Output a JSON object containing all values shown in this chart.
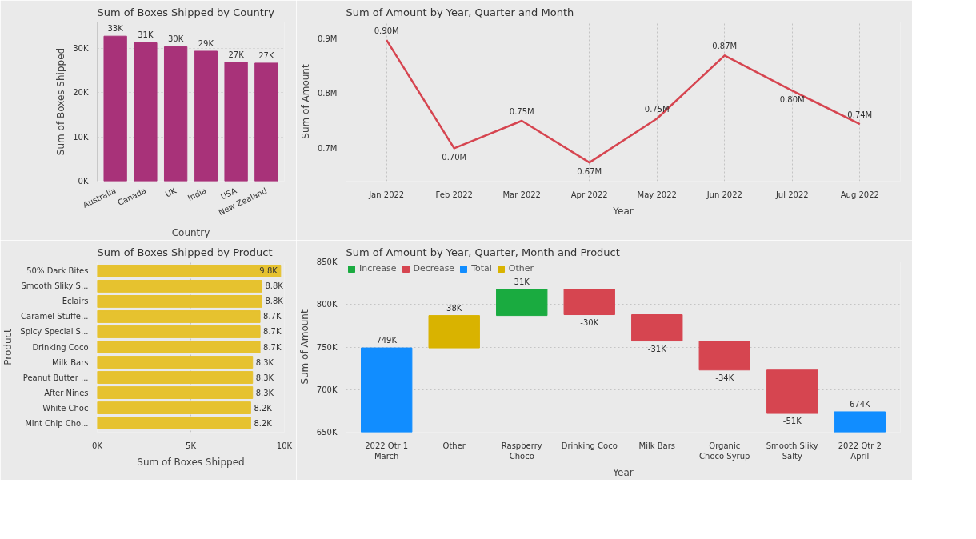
{
  "chart_data": [
    {
      "type": "bar",
      "title": "Sum of Boxes Shipped by Country",
      "xlabel": "Country",
      "ylabel": "Sum of Boxes Shipped",
      "categories": [
        "Australia",
        "Canada",
        "UK",
        "India",
        "USA",
        "New Zealand"
      ],
      "values": [
        32800,
        31300,
        30400,
        29400,
        26900,
        26700
      ],
      "color": "#a83279",
      "value_labels": [
        "33K",
        "31K",
        "30K",
        "29K",
        "27K",
        "27K"
      ],
      "ylim": [
        0,
        36000
      ],
      "yticks": [
        {
          "value": 0,
          "label": "0K"
        },
        {
          "value": 10000,
          "label": "10K"
        },
        {
          "value": 20000,
          "label": "20K"
        },
        {
          "value": 30000,
          "label": "30K"
        }
      ],
      "grid": "y"
    },
    {
      "type": "line",
      "title": "Sum of Amount by Year, Quarter and Month",
      "xlabel": "Year",
      "ylabel": "Sum of Amount",
      "categories": [
        "Jan 2022",
        "Feb 2022",
        "Mar 2022",
        "Apr 2022",
        "May 2022",
        "Jun 2022",
        "Jul 2022",
        "Aug 2022"
      ],
      "values": [
        0.897,
        0.7,
        0.75,
        0.674,
        0.754,
        0.869,
        0.805,
        0.744
      ],
      "color": "#d64550",
      "value_labels": [
        "0.90M",
        "0.70M",
        "0.75M",
        "0.67M",
        "0.75M",
        "0.87M",
        "0.80M",
        "0.74M"
      ],
      "ylim": [
        0.64,
        0.93
      ],
      "yticks": [
        {
          "value": 0.7,
          "label": "0.7M"
        },
        {
          "value": 0.8,
          "label": "0.8M"
        },
        {
          "value": 0.9,
          "label": "0.9M"
        }
      ],
      "grid": "x"
    },
    {
      "type": "bar",
      "orientation": "horizontal",
      "title": "Sum of Boxes Shipped by Product",
      "xlabel": "Sum of Boxes Shipped",
      "ylabel": "Product",
      "categories": [
        "50% Dark Bites",
        "Smooth Sliky S...",
        "Eclairs",
        "Caramel Stuffe...",
        "Spicy Special S...",
        "Drinking Coco",
        "Milk Bars",
        "Peanut Butter ...",
        "After Nines",
        "White Choc",
        "Mint Chip Cho..."
      ],
      "values": [
        9800,
        8800,
        8800,
        8700,
        8700,
        8700,
        8300,
        8300,
        8300,
        8200,
        8200
      ],
      "color": "#e6c22f",
      "value_labels": [
        "9.8K",
        "8.8K",
        "8.8K",
        "8.7K",
        "8.7K",
        "8.7K",
        "8.3K",
        "8.3K",
        "8.3K",
        "8.2K",
        "8.2K"
      ],
      "xlim": [
        0,
        10000
      ],
      "xticks": [
        {
          "value": 0,
          "label": "0K"
        },
        {
          "value": 5000,
          "label": "5K"
        },
        {
          "value": 10000,
          "label": "10K"
        }
      ],
      "grid": "x"
    },
    {
      "type": "bar",
      "title": "Sum of Amount by Year, Quarter, Month and Product",
      "xlabel": "Year",
      "ylabel": "Sum of Amount",
      "categories": [
        "2022 Qtr 1\nMarch",
        "Other",
        "Raspberry\nChoco",
        "Drinking Coco",
        "Milk Bars",
        "Organic\nChoco Syrup",
        "Smooth Sliky\nSalty",
        "2022 Qtr 2\nApril"
      ],
      "series": [
        {
          "name": "Increase",
          "color": "#1aab40",
          "values": [
            null,
            null,
            31000,
            null,
            null,
            null,
            null,
            null
          ],
          "base": [
            null,
            null,
            787000,
            null,
            null,
            null,
            null,
            null
          ]
        },
        {
          "name": "Decrease",
          "color": "#d64550",
          "values": [
            null,
            null,
            null,
            -30000,
            -31000,
            -34000,
            -51000,
            null
          ],
          "base": [
            null,
            null,
            null,
            818000,
            788000,
            757000,
            723000,
            null
          ]
        },
        {
          "name": "Total",
          "color": "#118dff",
          "values": [
            749000,
            null,
            null,
            null,
            null,
            null,
            null,
            674000
          ]
        },
        {
          "name": "Other",
          "color": "#d9b300",
          "values": [
            null,
            38000,
            null,
            null,
            null,
            null,
            null,
            null
          ],
          "base": [
            null,
            749000,
            null,
            null,
            null,
            null,
            null,
            null
          ]
        }
      ],
      "value_labels": [
        "749K",
        "38K",
        "31K",
        "-30K",
        "-31K",
        "-34K",
        "-51K",
        "674K"
      ],
      "ylim": [
        650000,
        850000
      ],
      "yticks": [
        {
          "value": 650000,
          "label": "650K"
        },
        {
          "value": 700000,
          "label": "700K"
        },
        {
          "value": 750000,
          "label": "750K"
        },
        {
          "value": 800000,
          "label": "800K"
        },
        {
          "value": 850000,
          "label": "850K"
        }
      ],
      "grid": "y",
      "legend": "top left"
    }
  ]
}
